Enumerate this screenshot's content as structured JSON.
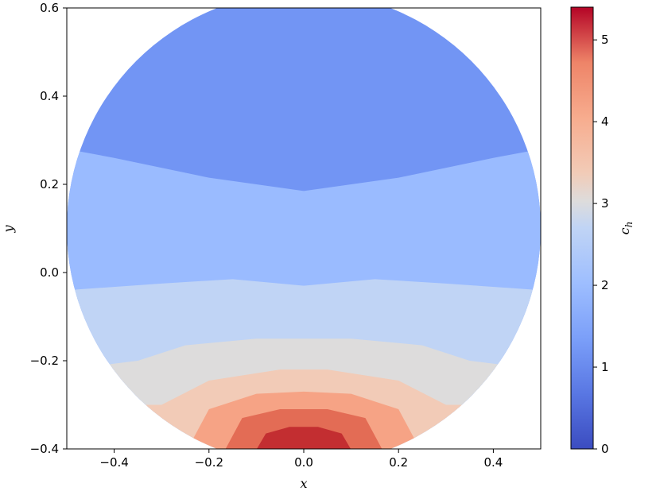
{
  "chart_data": {
    "type": "contourf",
    "xlabel": "x",
    "ylabel": "y",
    "colorbar_label": "c_h",
    "colorbar_label_main": "c",
    "colorbar_label_sub": "h",
    "colormap": "coolwarm",
    "xlim": [
      -0.5,
      0.5
    ],
    "ylim": [
      -0.4,
      0.6
    ],
    "x_ticks": [
      -0.4,
      -0.2,
      0.0,
      0.2,
      0.4
    ],
    "x_tick_labels": [
      "−0.4",
      "−0.2",
      "0.0",
      "0.2",
      "0.4"
    ],
    "y_ticks": [
      -0.4,
      -0.2,
      0.0,
      0.2,
      0.4,
      0.6
    ],
    "y_tick_labels": [
      "−0.4",
      "−0.2",
      "0.0",
      "0.2",
      "0.4",
      "0.6"
    ],
    "colorbar_ticks": [
      0,
      1,
      2,
      3,
      4,
      5
    ],
    "colorbar_tick_labels": [
      "0",
      "1",
      "2",
      "3",
      "4",
      "5"
    ],
    "colorbar_range": [
      0,
      5.4
    ],
    "domain": {
      "shape": "circle",
      "center": [
        0.0,
        0.1
      ],
      "radius": 0.5
    },
    "levels": [
      0,
      0.6,
      1.2,
      1.8,
      2.4,
      3.0,
      3.6,
      4.2,
      4.8,
      5.4
    ],
    "level_colors": [
      "#3b4cc0",
      "#5673e0",
      "#7295f4",
      "#9abbff",
      "#c0d4f5",
      "#dddcdc",
      "#f2cbb7",
      "#f6a385",
      "#e36c55",
      "#c32e31"
    ],
    "contour_boundaries": [
      {
        "level": 1.2,
        "points": [
          [
            -0.5,
            0.28
          ],
          [
            -0.4,
            0.26
          ],
          [
            -0.2,
            0.215
          ],
          [
            0.0,
            0.185
          ],
          [
            0.2,
            0.215
          ],
          [
            0.4,
            0.26
          ],
          [
            0.5,
            0.28
          ]
        ]
      },
      {
        "level": 1.8,
        "points": [
          [
            -0.5,
            -0.04
          ],
          [
            -0.3,
            -0.025
          ],
          [
            -0.15,
            -0.015
          ],
          [
            0.0,
            -0.03
          ],
          [
            0.15,
            -0.015
          ],
          [
            0.3,
            -0.025
          ],
          [
            0.5,
            -0.04
          ]
        ]
      },
      {
        "level": 2.4,
        "points": [
          [
            -0.5,
            -0.22
          ],
          [
            -0.35,
            -0.2
          ],
          [
            -0.25,
            -0.165
          ],
          [
            -0.1,
            -0.15
          ],
          [
            0.0,
            -0.15
          ],
          [
            0.1,
            -0.15
          ],
          [
            0.25,
            -0.165
          ],
          [
            0.35,
            -0.2
          ],
          [
            0.5,
            -0.22
          ]
        ]
      },
      {
        "level": 3.0,
        "points": [
          [
            -0.5,
            -0.3
          ],
          [
            -0.3,
            -0.3
          ],
          [
            -0.2,
            -0.245
          ],
          [
            -0.05,
            -0.22
          ],
          [
            0.05,
            -0.22
          ],
          [
            0.2,
            -0.245
          ],
          [
            0.3,
            -0.3
          ],
          [
            0.5,
            -0.3
          ]
        ]
      },
      {
        "level": 3.6,
        "points": [
          [
            -0.5,
            -0.39
          ],
          [
            -0.24,
            -0.39
          ],
          [
            -0.2,
            -0.31
          ],
          [
            -0.1,
            -0.275
          ],
          [
            0.0,
            -0.27
          ],
          [
            0.1,
            -0.275
          ],
          [
            0.2,
            -0.31
          ],
          [
            0.24,
            -0.39
          ],
          [
            0.5,
            -0.39
          ]
        ]
      },
      {
        "level": 4.2,
        "points": [
          [
            -0.5,
            -0.41
          ],
          [
            -0.17,
            -0.41
          ],
          [
            -0.13,
            -0.33
          ],
          [
            -0.05,
            -0.31
          ],
          [
            0.0,
            -0.31
          ],
          [
            0.05,
            -0.31
          ],
          [
            0.13,
            -0.33
          ],
          [
            0.17,
            -0.41
          ],
          [
            0.5,
            -0.41
          ]
        ]
      },
      {
        "level": 4.8,
        "points": [
          [
            -0.5,
            -0.42
          ],
          [
            -0.11,
            -0.42
          ],
          [
            -0.08,
            -0.365
          ],
          [
            -0.03,
            -0.35
          ],
          [
            0.0,
            -0.35
          ],
          [
            0.03,
            -0.35
          ],
          [
            0.08,
            -0.365
          ],
          [
            0.11,
            -0.42
          ],
          [
            0.5,
            -0.42
          ]
        ]
      }
    ]
  }
}
